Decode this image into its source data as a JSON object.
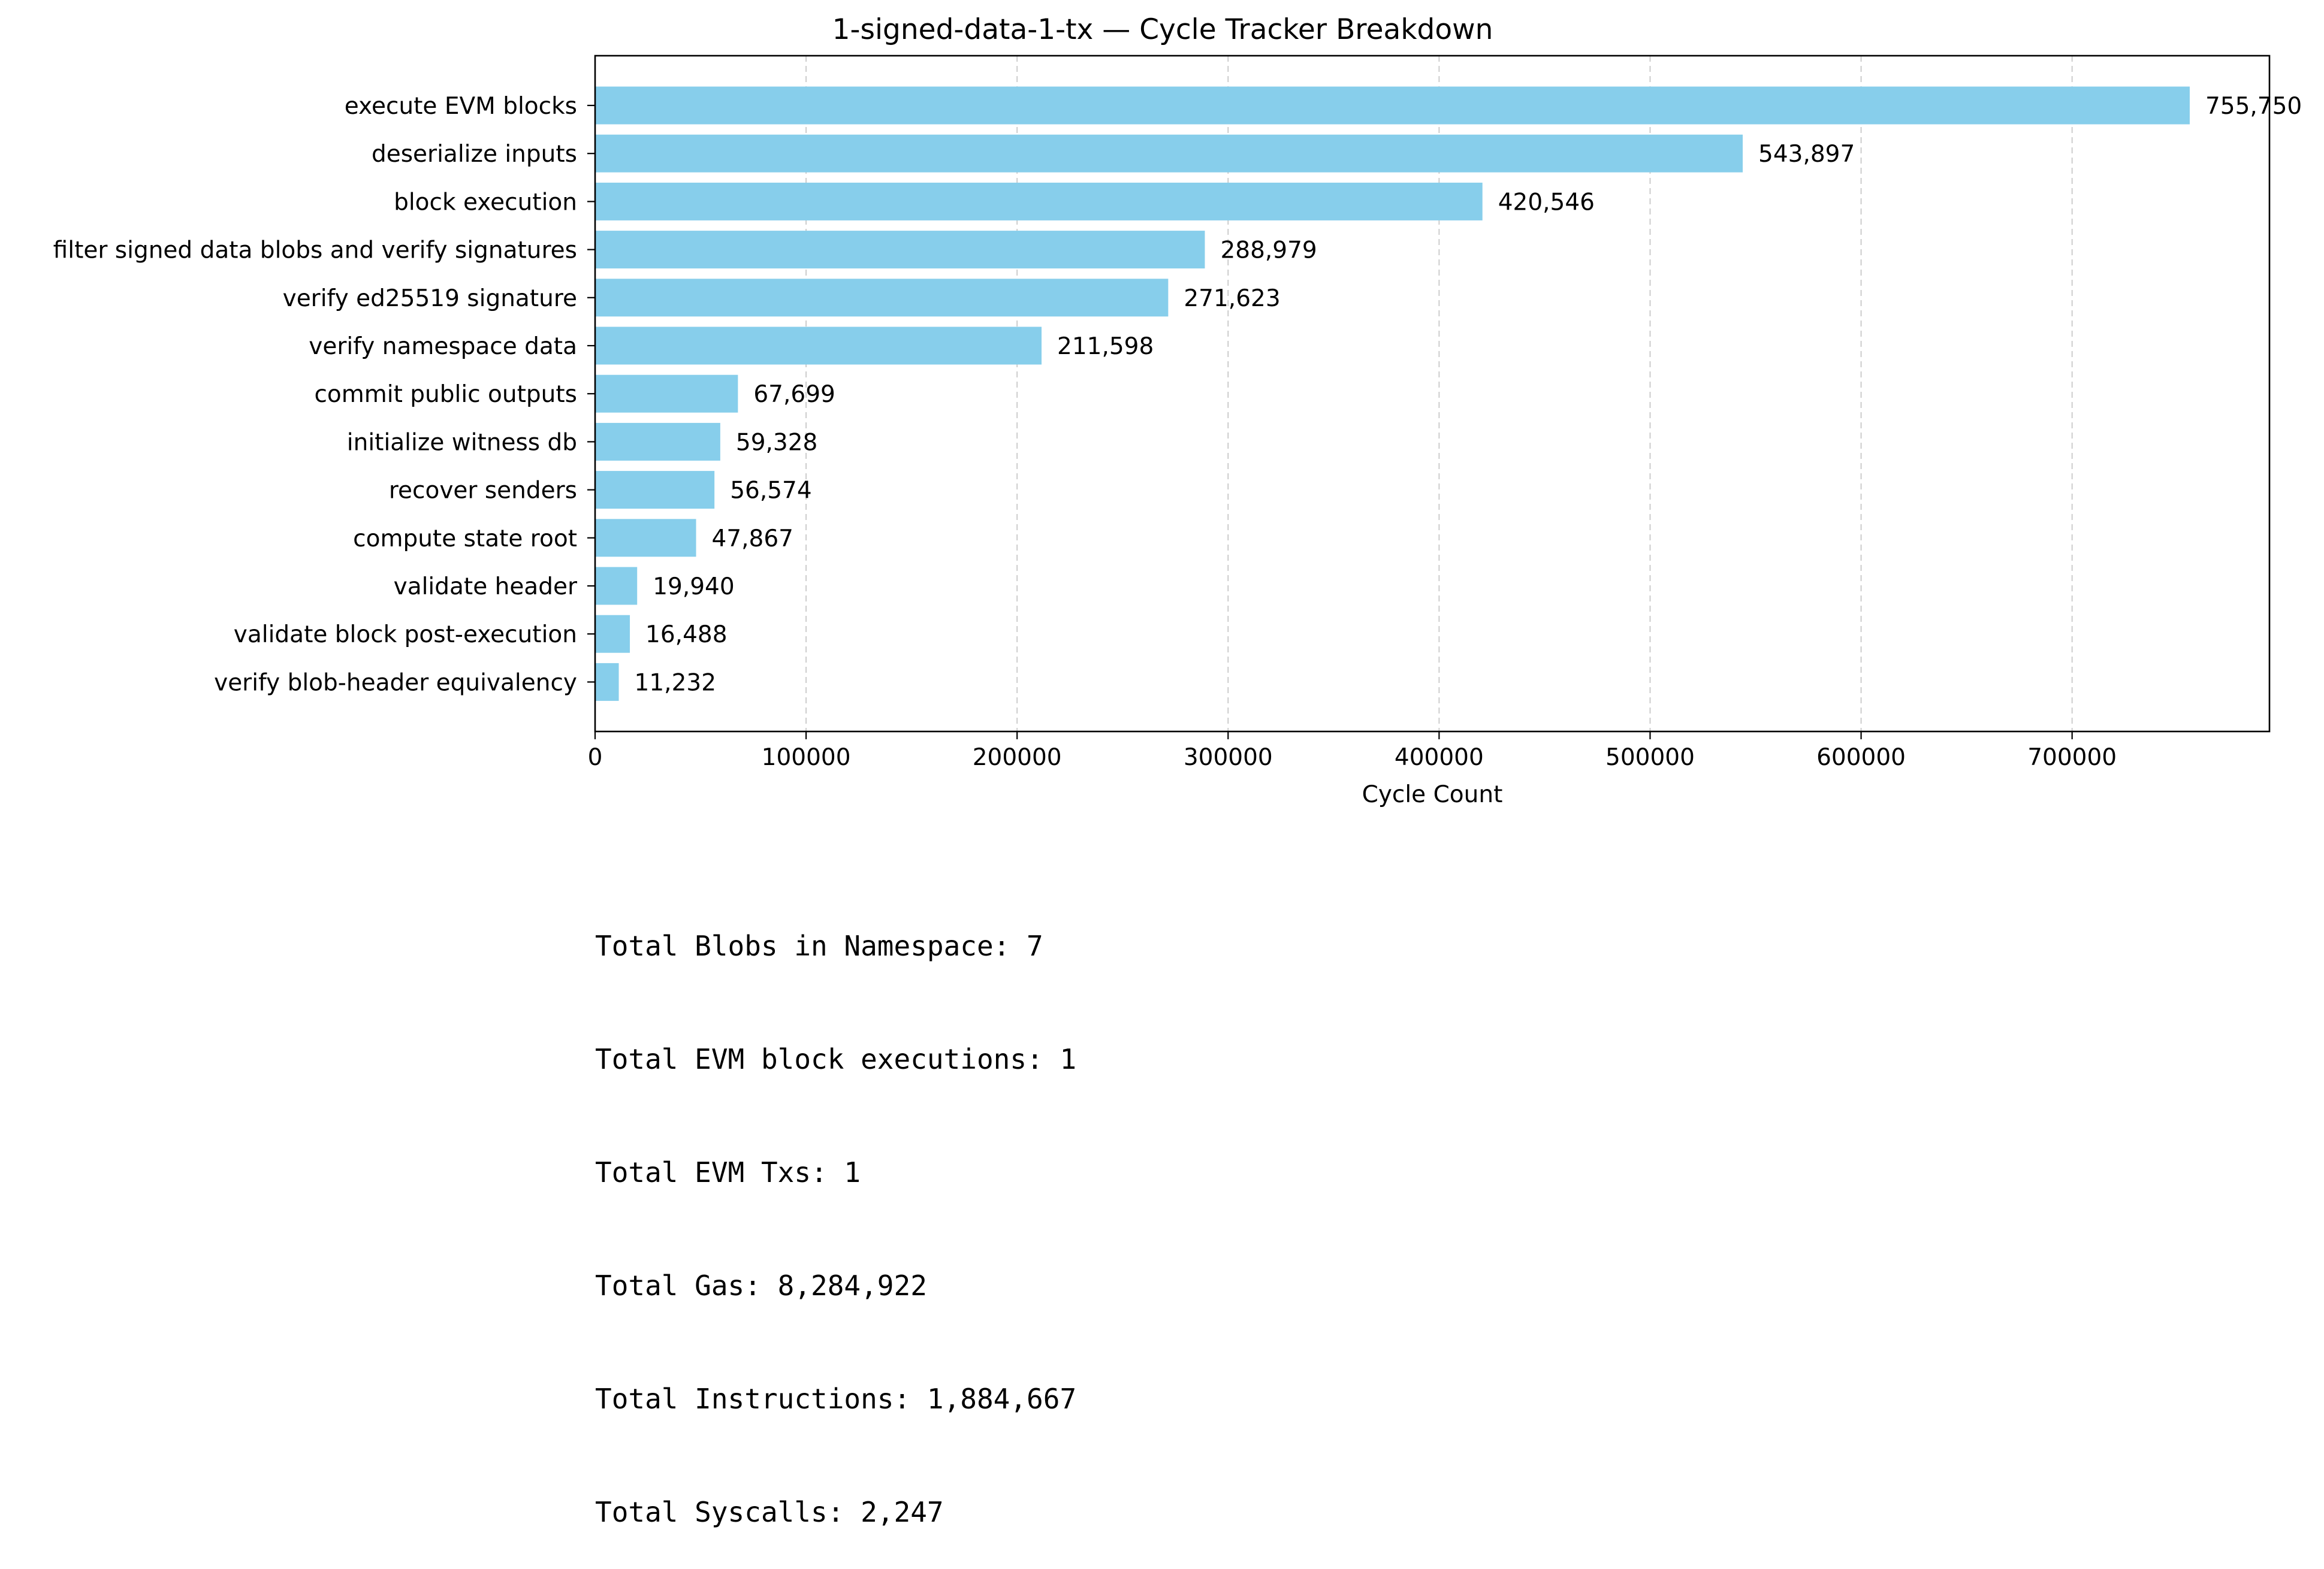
{
  "chart_data": {
    "type": "bar",
    "orientation": "horizontal",
    "title": "1-signed-data-1-tx — Cycle Tracker Breakdown",
    "xlabel": "Cycle Count",
    "ylabel": "",
    "xlim": [
      0,
      793537
    ],
    "x_ticks": [
      "0",
      "100000",
      "200000",
      "300000",
      "400000",
      "500000",
      "600000",
      "700000"
    ],
    "x_tick_values": [
      0,
      100000,
      200000,
      300000,
      400000,
      500000,
      600000,
      700000
    ],
    "grid": "x-dashed",
    "bar_color": "#87CEEB",
    "categories": [
      "execute EVM blocks",
      "deserialize inputs",
      "block execution",
      "filter signed data blobs and verify signatures",
      "verify ed25519 signature",
      "verify namespace data",
      "commit public outputs",
      "initialize witness db",
      "recover senders",
      "compute state root",
      "validate header",
      "validate block post-execution",
      "verify blob-header equivalency"
    ],
    "values": [
      755750,
      543897,
      420546,
      288979,
      271623,
      211598,
      67699,
      59328,
      56574,
      47867,
      19940,
      16488,
      11232
    ],
    "value_labels": [
      "755,750",
      "543,897",
      "420,546",
      "288,979",
      "271,623",
      "211,598",
      "67,699",
      "59,328",
      "56,574",
      "47,867",
      "19,940",
      "16,488",
      "11,232"
    ]
  },
  "stats": {
    "lines": [
      "Total Blobs in Namespace: 7",
      "Total EVM block executions: 1",
      "Total EVM Txs: 1",
      "Total Gas: 8,284,922",
      "Total Instructions: 1,884,667",
      "Total Syscalls: 2,247"
    ]
  }
}
